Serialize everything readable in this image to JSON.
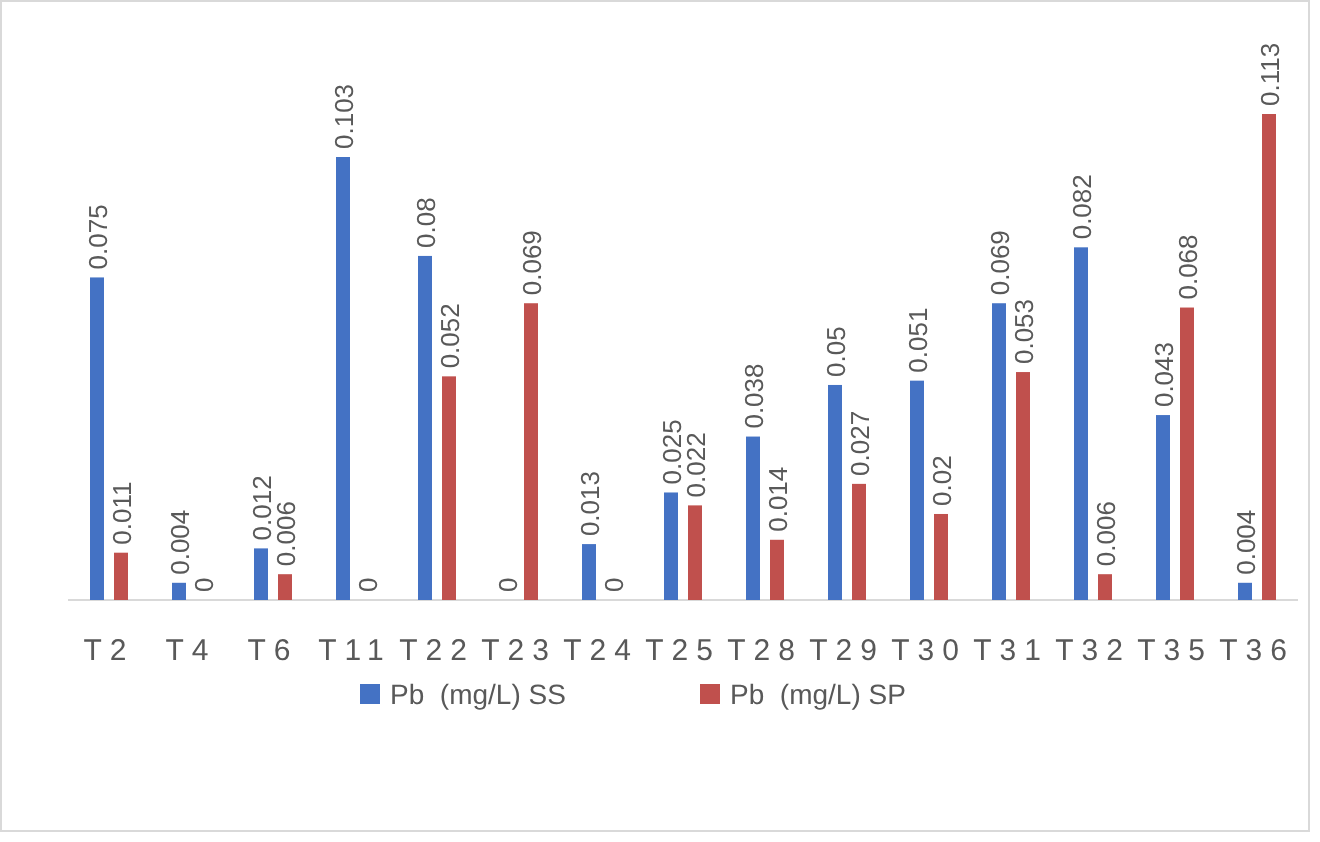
{
  "chart_data": {
    "type": "bar",
    "categories": [
      "T2",
      "T4",
      "T6",
      "T11",
      "T22",
      "T23",
      "T24",
      "T25",
      "T28",
      "T29",
      "T30",
      "T31",
      "T32",
      "T35",
      "T36"
    ],
    "series": [
      {
        "name": "Pb  (mg/L) SS",
        "color": "#4472c4",
        "values": [
          0.075,
          0.004,
          0.012,
          0.103,
          0.08,
          0,
          0.013,
          0.025,
          0.038,
          0.05,
          0.051,
          0.069,
          0.082,
          0.043,
          0.004
        ]
      },
      {
        "name": "Pb  (mg/L) SP",
        "color": "#c0504d",
        "values": [
          0.011,
          0,
          0.006,
          0,
          0.052,
          0.069,
          0,
          0.022,
          0.014,
          0.027,
          0.02,
          0.053,
          0.006,
          0.068,
          0.113
        ]
      }
    ],
    "data_labels": true,
    "grid": false,
    "legend": "bottom"
  }
}
